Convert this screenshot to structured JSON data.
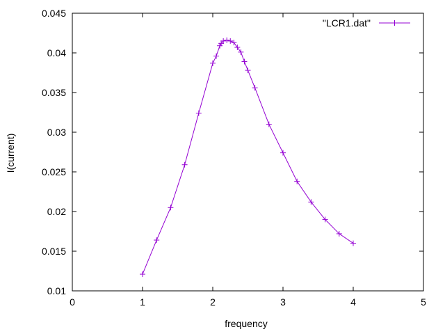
{
  "chart_data": {
    "type": "line",
    "xlabel": "frequency",
    "ylabel": "I(current)",
    "xlim": [
      0,
      5
    ],
    "ylim": [
      0.01,
      0.045
    ],
    "x_ticks": [
      "0",
      "1",
      "2",
      "3",
      "4",
      "5"
    ],
    "y_ticks": [
      "0.01",
      "0.015",
      "0.02",
      "0.025",
      "0.03",
      "0.035",
      "0.04",
      "0.045"
    ],
    "grid": false,
    "legend_position": "top-right",
    "series": [
      {
        "name": "\"LCR1.dat\"",
        "color": "#9400d3",
        "marker": "plus",
        "x": [
          1.0,
          1.2,
          1.4,
          1.6,
          1.8,
          2.0,
          2.05,
          2.1,
          2.12,
          2.15,
          2.2,
          2.25,
          2.3,
          2.35,
          2.4,
          2.45,
          2.5,
          2.6,
          2.8,
          3.0,
          3.2,
          3.4,
          3.6,
          3.8,
          4.0
        ],
        "y": [
          0.0121,
          0.0164,
          0.0205,
          0.0259,
          0.0324,
          0.0387,
          0.0396,
          0.0409,
          0.0412,
          0.0415,
          0.0416,
          0.0415,
          0.0413,
          0.0407,
          0.0401,
          0.0389,
          0.0378,
          0.0356,
          0.031,
          0.0274,
          0.0238,
          0.0212,
          0.019,
          0.0172,
          0.016
        ]
      }
    ]
  }
}
